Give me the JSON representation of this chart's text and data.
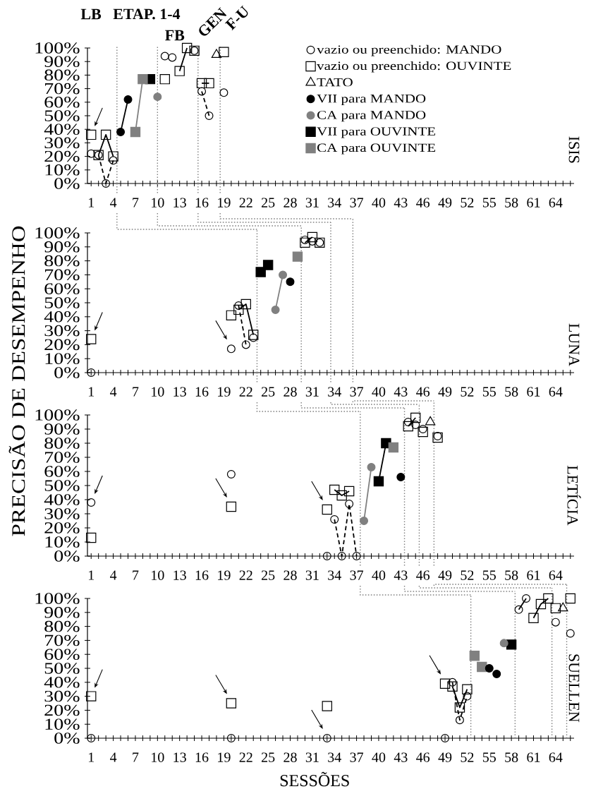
{
  "chart_data": [
    {
      "type": "scatter",
      "title": "ISIS",
      "annotations": [
        "LB",
        "ETAP. 1-4",
        "FB",
        "GEN",
        "F-U"
      ],
      "legend": "top right",
      "xlim": [
        0.5,
        66.5
      ],
      "ylim": [
        0,
        100
      ],
      "xticks": [
        1,
        {
          "value": 2,
          "label": null
        },
        {
          "value": 3,
          "label": null
        },
        4,
        {
          "value": 5,
          "label": null
        },
        {
          "value": 6,
          "label": null
        },
        7,
        {
          "value": 8,
          "label": null
        },
        {
          "value": 9,
          "label": null
        },
        10,
        {
          "value": 11,
          "label": null
        },
        {
          "value": 12,
          "label": null
        },
        13,
        {
          "value": 14,
          "label": null
        },
        {
          "value": 15,
          "label": null
        },
        16,
        {
          "value": 17,
          "label": null
        },
        {
          "value": 18,
          "label": null
        },
        19,
        {
          "value": 20,
          "label": null
        },
        {
          "value": 21,
          "label": null
        },
        22,
        {
          "value": 23,
          "label": null
        },
        {
          "value": 24,
          "label": null
        },
        25,
        {
          "value": 26,
          "label": null
        },
        {
          "value": 27,
          "label": null
        },
        28,
        {
          "value": 29,
          "label": null
        },
        {
          "value": 30,
          "label": null
        },
        31,
        {
          "value": 32,
          "label": null
        },
        {
          "value": 33,
          "label": null
        },
        34,
        {
          "value": 35,
          "label": null
        },
        {
          "value": 36,
          "label": null
        },
        37,
        {
          "value": 38,
          "label": null
        },
        {
          "value": 39,
          "label": null
        },
        40,
        {
          "value": 41,
          "label": null
        },
        {
          "value": 42,
          "label": null
        },
        43,
        {
          "value": 44,
          "label": null
        },
        {
          "value": 45,
          "label": null
        },
        46,
        {
          "value": 47,
          "label": null
        },
        {
          "value": 48,
          "label": null
        },
        49,
        {
          "value": 50,
          "label": null
        },
        {
          "value": 51,
          "label": null
        },
        52,
        {
          "value": 53,
          "label": null
        },
        {
          "value": 54,
          "label": null
        },
        55,
        {
          "value": 56,
          "label": null
        },
        {
          "value": 57,
          "label": null
        },
        58,
        {
          "value": 59,
          "label": null
        },
        {
          "value": 60,
          "label": null
        },
        61,
        {
          "value": 62,
          "label": null
        },
        {
          "value": 63,
          "label": null
        },
        64,
        {
          "value": 65,
          "label": null
        },
        {
          "value": 66,
          "label": null
        }
      ],
      "yticks": [
        {
          "value": 0,
          "label": "0%"
        },
        {
          "value": 10,
          "label": "10%"
        },
        {
          "value": 20,
          "label": "20%"
        },
        {
          "value": 30,
          "label": "30%"
        },
        {
          "value": 40,
          "label": "40%"
        },
        {
          "value": 50,
          "label": "50%"
        },
        {
          "value": 60,
          "label": "60%"
        },
        {
          "value": 70,
          "label": "70%"
        },
        {
          "value": 80,
          "label": "80%"
        },
        {
          "value": 90,
          "label": "90%"
        },
        {
          "value": 100,
          "label": "100%"
        }
      ],
      "ref_lines": [
        {
          "axis": "x",
          "value": 4.5,
          "color": "#808080",
          "line_style": "dotted"
        },
        {
          "axis": "x",
          "value": 10,
          "color": "#808080",
          "line_style": "dotted"
        },
        {
          "axis": "x",
          "value": 15.5,
          "color": "#808080",
          "line_style": "dotted"
        },
        {
          "axis": "x",
          "value": 18.5,
          "color": "#808080",
          "line_style": "dotted"
        }
      ],
      "series": [
        {
          "name": "vazio ou preenchido: MANDO",
          "color": "#000000",
          "marker": "circle",
          "x": [
            1,
            2,
            3,
            4,
            11,
            12,
            15,
            16,
            17,
            19
          ],
          "values": [
            22,
            21,
            0,
            17,
            94,
            93,
            98,
            68,
            50,
            67
          ]
        },
        {
          "name": "vazio ou preenchido: OUVINTE",
          "color": "#000000",
          "marker": "square",
          "x": [
            1,
            2,
            3,
            4,
            11,
            13,
            14,
            15,
            16,
            17,
            19
          ],
          "values": [
            36,
            21,
            36,
            20,
            77,
            83,
            100,
            98,
            74,
            74,
            97
          ]
        },
        {
          "name": "TATO",
          "color": "#000000",
          "marker": "triangle",
          "x": [
            18
          ],
          "values": [
            95
          ]
        },
        {
          "name": "VII para MANDO",
          "color": "#000000",
          "marker": "circle",
          "x": [
            5,
            6
          ],
          "values": [
            38,
            62
          ]
        },
        {
          "name": "CA para MANDO",
          "color": "#808080",
          "marker": "circle",
          "x": [
            10
          ],
          "values": [
            64
          ]
        },
        {
          "name": "VII para OUVINTE",
          "color": "#000000",
          "marker": "square",
          "x": [
            9
          ],
          "values": [
            77
          ]
        },
        {
          "name": "CA para OUVINTE",
          "color": "#808080",
          "marker": "square",
          "x": [
            7,
            8
          ],
          "values": [
            38,
            77
          ]
        },
        {
          "type": "line",
          "color": "#000000",
          "line_style": "solid",
          "marker": "none",
          "x": [
            2,
            3,
            4
          ],
          "values": [
            21,
            36,
            20
          ]
        },
        {
          "type": "line",
          "color": "#000000",
          "line_style": "dashed",
          "marker": "none",
          "x": [
            2,
            3,
            4
          ],
          "values": [
            21,
            0,
            17
          ]
        },
        {
          "type": "line",
          "color": "#000000",
          "line_style": "solid",
          "marker": "none",
          "x": [
            5,
            6
          ],
          "values": [
            38,
            62
          ]
        },
        {
          "type": "line",
          "color": "#808080",
          "line_style": "solid",
          "marker": "none",
          "x": [
            7,
            8
          ],
          "values": [
            38,
            77
          ]
        },
        {
          "type": "line",
          "color": "#000000",
          "line_style": "solid",
          "marker": "none",
          "x": [
            13,
            14
          ],
          "values": [
            83,
            100
          ]
        },
        {
          "type": "line",
          "color": "#000000",
          "line_style": "solid",
          "marker": "none",
          "x": [
            16,
            17
          ],
          "values": [
            74,
            74
          ]
        },
        {
          "type": "line",
          "color": "#000000",
          "line_style": "dashed",
          "marker": "none",
          "x": [
            16,
            17
          ],
          "values": [
            68,
            50
          ]
        }
      ]
    },
    {
      "type": "scatter",
      "title": "LUNA",
      "ylabel": "PRECISÃO DE DESEMPENHO",
      "xlim": [
        0.5,
        66.5
      ],
      "ylim": [
        0,
        100
      ],
      "xticks": [
        1,
        {
          "value": 2,
          "label": null
        },
        {
          "value": 3,
          "label": null
        },
        4,
        {
          "value": 5,
          "label": null
        },
        {
          "value": 6,
          "label": null
        },
        7,
        {
          "value": 8,
          "label": null
        },
        {
          "value": 9,
          "label": null
        },
        10,
        {
          "value": 11,
          "label": null
        },
        {
          "value": 12,
          "label": null
        },
        13,
        {
          "value": 14,
          "label": null
        },
        {
          "value": 15,
          "label": null
        },
        16,
        {
          "value": 17,
          "label": null
        },
        {
          "value": 18,
          "label": null
        },
        19,
        {
          "value": 20,
          "label": null
        },
        {
          "value": 21,
          "label": null
        },
        22,
        {
          "value": 23,
          "label": null
        },
        {
          "value": 24,
          "label": null
        },
        25,
        {
          "value": 26,
          "label": null
        },
        {
          "value": 27,
          "label": null
        },
        28,
        {
          "value": 29,
          "label": null
        },
        {
          "value": 30,
          "label": null
        },
        31,
        {
          "value": 32,
          "label": null
        },
        {
          "value": 33,
          "label": null
        },
        34,
        {
          "value": 35,
          "label": null
        },
        {
          "value": 36,
          "label": null
        },
        37,
        {
          "value": 38,
          "label": null
        },
        {
          "value": 39,
          "label": null
        },
        40,
        {
          "value": 41,
          "label": null
        },
        {
          "value": 42,
          "label": null
        },
        43,
        {
          "value": 44,
          "label": null
        },
        {
          "value": 45,
          "label": null
        },
        46,
        {
          "value": 47,
          "label": null
        },
        {
          "value": 48,
          "label": null
        },
        49,
        {
          "value": 50,
          "label": null
        },
        {
          "value": 51,
          "label": null
        },
        52,
        {
          "value": 53,
          "label": null
        },
        {
          "value": 54,
          "label": null
        },
        55,
        {
          "value": 56,
          "label": null
        },
        {
          "value": 57,
          "label": null
        },
        58,
        {
          "value": 59,
          "label": null
        },
        {
          "value": 60,
          "label": null
        },
        61,
        {
          "value": 62,
          "label": null
        },
        {
          "value": 63,
          "label": null
        },
        64,
        {
          "value": 65,
          "label": null
        },
        {
          "value": 66,
          "label": null
        }
      ],
      "yticks": [
        {
          "value": 0,
          "label": "0%"
        },
        {
          "value": 10,
          "label": "10%"
        },
        {
          "value": 20,
          "label": "20%"
        },
        {
          "value": 30,
          "label": "30%"
        },
        {
          "value": 40,
          "label": "40%"
        },
        {
          "value": 50,
          "label": "50%"
        },
        {
          "value": 60,
          "label": "60%"
        },
        {
          "value": 70,
          "label": "70%"
        },
        {
          "value": 80,
          "label": "80%"
        },
        {
          "value": 90,
          "label": "90%"
        },
        {
          "value": 100,
          "label": "100%"
        }
      ],
      "ref_lines": [
        {
          "axis": "x",
          "value": 23.5,
          "color": "#808080",
          "line_style": "dotted"
        },
        {
          "axis": "x",
          "value": 29.5,
          "color": "#808080",
          "line_style": "dotted"
        },
        {
          "axis": "x",
          "value": 33.5,
          "color": "#808080",
          "line_style": "dotted"
        },
        {
          "axis": "x",
          "value": 36.5,
          "color": "#808080",
          "line_style": "dotted"
        }
      ],
      "series": [
        {
          "color": "#000000",
          "marker": "circle",
          "x": [
            1,
            20,
            21,
            22,
            23,
            30,
            31,
            32
          ],
          "values": [
            0,
            17,
            48,
            20,
            25,
            95,
            94,
            93
          ]
        },
        {
          "color": "#000000",
          "marker": "square",
          "x": [
            1,
            20,
            21,
            22,
            23,
            30,
            31,
            32
          ],
          "values": [
            24,
            41,
            45,
            49,
            27,
            93,
            97,
            93
          ]
        },
        {
          "color": "#000000",
          "marker": "circle",
          "x": [
            28
          ],
          "values": [
            65
          ]
        },
        {
          "color": "#808080",
          "marker": "circle",
          "x": [
            26,
            27
          ],
          "values": [
            45,
            70
          ]
        },
        {
          "color": "#000000",
          "marker": "square",
          "x": [
            24,
            25
          ],
          "values": [
            72,
            77
          ]
        },
        {
          "color": "#808080",
          "marker": "square",
          "x": [
            29
          ],
          "values": [
            83
          ]
        },
        {
          "type": "line",
          "color": "#000000",
          "line_style": "solid",
          "marker": "none",
          "x": [
            21,
            22,
            23
          ],
          "values": [
            45,
            49,
            27
          ]
        },
        {
          "type": "line",
          "color": "#000000",
          "line_style": "dashed",
          "marker": "none",
          "x": [
            21,
            22
          ],
          "values": [
            48,
            20
          ]
        },
        {
          "type": "line",
          "color": "#808080",
          "line_style": "solid",
          "marker": "none",
          "x": [
            26,
            27
          ],
          "values": [
            45,
            70
          ]
        },
        {
          "type": "line",
          "color": "#000000",
          "line_style": "solid",
          "marker": "none",
          "x": [
            30,
            31
          ],
          "values": [
            93,
            97
          ]
        }
      ]
    },
    {
      "type": "scatter",
      "title": "LETÍCIA",
      "xlim": [
        0.5,
        66.5
      ],
      "ylim": [
        0,
        100
      ],
      "xticks": [
        1,
        {
          "value": 2,
          "label": null
        },
        {
          "value": 3,
          "label": null
        },
        4,
        {
          "value": 5,
          "label": null
        },
        {
          "value": 6,
          "label": null
        },
        7,
        {
          "value": 8,
          "label": null
        },
        {
          "value": 9,
          "label": null
        },
        10,
        {
          "value": 11,
          "label": null
        },
        {
          "value": 12,
          "label": null
        },
        13,
        {
          "value": 14,
          "label": null
        },
        {
          "value": 15,
          "label": null
        },
        16,
        {
          "value": 17,
          "label": null
        },
        {
          "value": 18,
          "label": null
        },
        19,
        {
          "value": 20,
          "label": null
        },
        {
          "value": 21,
          "label": null
        },
        22,
        {
          "value": 23,
          "label": null
        },
        {
          "value": 24,
          "label": null
        },
        25,
        {
          "value": 26,
          "label": null
        },
        {
          "value": 27,
          "label": null
        },
        28,
        {
          "value": 29,
          "label": null
        },
        {
          "value": 30,
          "label": null
        },
        31,
        {
          "value": 32,
          "label": null
        },
        {
          "value": 33,
          "label": null
        },
        34,
        {
          "value": 35,
          "label": null
        },
        {
          "value": 36,
          "label": null
        },
        37,
        {
          "value": 38,
          "label": null
        },
        {
          "value": 39,
          "label": null
        },
        40,
        {
          "value": 41,
          "label": null
        },
        {
          "value": 42,
          "label": null
        },
        43,
        {
          "value": 44,
          "label": null
        },
        {
          "value": 45,
          "label": null
        },
        46,
        {
          "value": 47,
          "label": null
        },
        {
          "value": 48,
          "label": null
        },
        49,
        {
          "value": 50,
          "label": null
        },
        {
          "value": 51,
          "label": null
        },
        52,
        {
          "value": 53,
          "label": null
        },
        {
          "value": 54,
          "label": null
        },
        55,
        {
          "value": 56,
          "label": null
        },
        {
          "value": 57,
          "label": null
        },
        58,
        {
          "value": 59,
          "label": null
        },
        {
          "value": 60,
          "label": null
        },
        61,
        {
          "value": 62,
          "label": null
        },
        {
          "value": 63,
          "label": null
        },
        64,
        {
          "value": 65,
          "label": null
        },
        {
          "value": 66,
          "label": null
        }
      ],
      "yticks": [
        {
          "value": 0,
          "label": "0%"
        },
        {
          "value": 10,
          "label": "10%"
        },
        {
          "value": 20,
          "label": "20%"
        },
        {
          "value": 30,
          "label": "30%"
        },
        {
          "value": 40,
          "label": "40%"
        },
        {
          "value": 50,
          "label": "50%"
        },
        {
          "value": 60,
          "label": "60%"
        },
        {
          "value": 70,
          "label": "70%"
        },
        {
          "value": 80,
          "label": "80%"
        },
        {
          "value": 90,
          "label": "90%"
        },
        {
          "value": 100,
          "label": "100%"
        }
      ],
      "ref_lines": [
        {
          "axis": "x",
          "value": 37.5,
          "color": "#808080",
          "line_style": "dotted"
        },
        {
          "axis": "x",
          "value": 43.5,
          "color": "#808080",
          "line_style": "dotted"
        },
        {
          "axis": "x",
          "value": 45.5,
          "color": "#808080",
          "line_style": "dotted"
        },
        {
          "axis": "x",
          "value": 47.5,
          "color": "#808080",
          "line_style": "dotted"
        }
      ],
      "series": [
        {
          "color": "#000000",
          "marker": "circle",
          "x": [
            1,
            20,
            33,
            34,
            35,
            36,
            37,
            44,
            45,
            46,
            48
          ],
          "values": [
            38,
            58,
            0,
            26,
            0,
            37,
            0,
            95,
            93,
            90,
            85
          ]
        },
        {
          "color": "#000000",
          "marker": "square",
          "x": [
            1,
            20,
            33,
            34,
            35,
            36,
            44,
            45,
            46,
            48
          ],
          "values": [
            13,
            35,
            33,
            47,
            43,
            46,
            92,
            98,
            88,
            84
          ]
        },
        {
          "color": "#000000",
          "marker": "triangle",
          "x": [
            47
          ],
          "values": [
            95
          ]
        },
        {
          "color": "#000000",
          "marker": "circle",
          "x": [
            43
          ],
          "values": [
            56
          ]
        },
        {
          "color": "#808080",
          "marker": "circle",
          "x": [
            38,
            39
          ],
          "values": [
            25,
            63
          ]
        },
        {
          "color": "#000000",
          "marker": "square",
          "x": [
            40,
            41
          ],
          "values": [
            53,
            80
          ]
        },
        {
          "color": "#808080",
          "marker": "square",
          "x": [
            42
          ],
          "values": [
            77
          ]
        },
        {
          "type": "line",
          "color": "#000000",
          "line_style": "solid",
          "marker": "none",
          "x": [
            34,
            35,
            36
          ],
          "values": [
            47,
            43,
            46
          ]
        },
        {
          "type": "line",
          "color": "#000000",
          "line_style": "dashed",
          "marker": "none",
          "x": [
            34,
            35,
            36,
            37
          ],
          "values": [
            26,
            0,
            37,
            0
          ]
        },
        {
          "type": "line",
          "color": "#808080",
          "line_style": "solid",
          "marker": "none",
          "x": [
            38,
            39
          ],
          "values": [
            25,
            63
          ]
        },
        {
          "type": "line",
          "color": "#000000",
          "line_style": "solid",
          "marker": "none",
          "x": [
            40,
            41
          ],
          "values": [
            53,
            80
          ]
        },
        {
          "type": "line",
          "color": "#000000",
          "line_style": "solid",
          "marker": "none",
          "x": [
            44,
            45
          ],
          "values": [
            92,
            98
          ]
        }
      ]
    },
    {
      "type": "scatter",
      "title": "SUELLEN",
      "xlabel": "SESSÕES",
      "xlim": [
        0.5,
        66.5
      ],
      "ylim": [
        0,
        100
      ],
      "xticks": [
        1,
        {
          "value": 2,
          "label": null
        },
        {
          "value": 3,
          "label": null
        },
        4,
        {
          "value": 5,
          "label": null
        },
        {
          "value": 6,
          "label": null
        },
        7,
        {
          "value": 8,
          "label": null
        },
        {
          "value": 9,
          "label": null
        },
        10,
        {
          "value": 11,
          "label": null
        },
        {
          "value": 12,
          "label": null
        },
        13,
        {
          "value": 14,
          "label": null
        },
        {
          "value": 15,
          "label": null
        },
        16,
        {
          "value": 17,
          "label": null
        },
        {
          "value": 18,
          "label": null
        },
        19,
        {
          "value": 20,
          "label": null
        },
        {
          "value": 21,
          "label": null
        },
        22,
        {
          "value": 23,
          "label": null
        },
        {
          "value": 24,
          "label": null
        },
        25,
        {
          "value": 26,
          "label": null
        },
        {
          "value": 27,
          "label": null
        },
        28,
        {
          "value": 29,
          "label": null
        },
        {
          "value": 30,
          "label": null
        },
        31,
        {
          "value": 32,
          "label": null
        },
        {
          "value": 33,
          "label": null
        },
        34,
        {
          "value": 35,
          "label": null
        },
        {
          "value": 36,
          "label": null
        },
        37,
        {
          "value": 38,
          "label": null
        },
        {
          "value": 39,
          "label": null
        },
        40,
        {
          "value": 41,
          "label": null
        },
        {
          "value": 42,
          "label": null
        },
        43,
        {
          "value": 44,
          "label": null
        },
        {
          "value": 45,
          "label": null
        },
        46,
        {
          "value": 47,
          "label": null
        },
        {
          "value": 48,
          "label": null
        },
        49,
        {
          "value": 50,
          "label": null
        },
        {
          "value": 51,
          "label": null
        },
        52,
        {
          "value": 53,
          "label": null
        },
        {
          "value": 54,
          "label": null
        },
        55,
        {
          "value": 56,
          "label": null
        },
        {
          "value": 57,
          "label": null
        },
        58,
        {
          "value": 59,
          "label": null
        },
        {
          "value": 60,
          "label": null
        },
        61,
        {
          "value": 62,
          "label": null
        },
        {
          "value": 63,
          "label": null
        },
        64,
        {
          "value": 65,
          "label": null
        },
        {
          "value": 66,
          "label": null
        }
      ],
      "yticks": [
        {
          "value": 0,
          "label": "0%"
        },
        {
          "value": 10,
          "label": "10%"
        },
        {
          "value": 20,
          "label": "20%"
        },
        {
          "value": 30,
          "label": "30%"
        },
        {
          "value": 40,
          "label": "40%"
        },
        {
          "value": 50,
          "label": "50%"
        },
        {
          "value": 60,
          "label": "60%"
        },
        {
          "value": 70,
          "label": "70%"
        },
        {
          "value": 80,
          "label": "80%"
        },
        {
          "value": 90,
          "label": "90%"
        },
        {
          "value": 100,
          "label": "100%"
        }
      ],
      "ref_lines": [
        {
          "axis": "x",
          "value": 52.5,
          "color": "#808080",
          "line_style": "dotted"
        },
        {
          "axis": "x",
          "value": 58.5,
          "color": "#808080",
          "line_style": "dotted"
        },
        {
          "axis": "x",
          "value": 63.5,
          "color": "#808080",
          "line_style": "dotted"
        },
        {
          "axis": "x",
          "value": 65.5,
          "color": "#808080",
          "line_style": "dotted"
        }
      ],
      "series": [
        {
          "color": "#000000",
          "marker": "circle",
          "x": [
            1,
            20,
            33,
            49,
            50,
            51,
            52,
            59,
            60,
            64,
            66
          ],
          "values": [
            0,
            0,
            0,
            0,
            40,
            13,
            30,
            92,
            100,
            83,
            75
          ]
        },
        {
          "color": "#000000",
          "marker": "square",
          "x": [
            1,
            20,
            33,
            49,
            50,
            51,
            52,
            61,
            62,
            63,
            64,
            66
          ],
          "values": [
            30,
            25,
            23,
            39,
            37,
            22,
            35,
            86,
            96,
            100,
            93,
            100
          ]
        },
        {
          "color": "#000000",
          "marker": "triangle",
          "x": [
            65
          ],
          "values": [
            93
          ]
        },
        {
          "color": "#000000",
          "marker": "circle",
          "x": [
            55,
            56
          ],
          "values": [
            50,
            46
          ]
        },
        {
          "color": "#808080",
          "marker": "circle",
          "x": [
            57
          ],
          "values": [
            68
          ]
        },
        {
          "color": "#000000",
          "marker": "square",
          "x": [
            58
          ],
          "values": [
            67
          ]
        },
        {
          "color": "#808080",
          "marker": "square",
          "x": [
            53,
            54
          ],
          "values": [
            59,
            51
          ]
        },
        {
          "type": "line",
          "color": "#000000",
          "line_style": "solid",
          "marker": "none",
          "x": [
            50,
            51,
            52
          ],
          "values": [
            37,
            22,
            35
          ]
        },
        {
          "type": "line",
          "color": "#000000",
          "line_style": "dashed",
          "marker": "none",
          "x": [
            50,
            51,
            52
          ],
          "values": [
            40,
            13,
            30
          ]
        },
        {
          "type": "line",
          "color": "#000000",
          "line_style": "solid",
          "marker": "none",
          "x": [
            59,
            60
          ],
          "values": [
            92,
            100
          ]
        },
        {
          "type": "line",
          "color": "#000000",
          "line_style": "solid",
          "marker": "none",
          "x": [
            61,
            62,
            63
          ],
          "values": [
            86,
            96,
            100
          ]
        }
      ]
    }
  ]
}
